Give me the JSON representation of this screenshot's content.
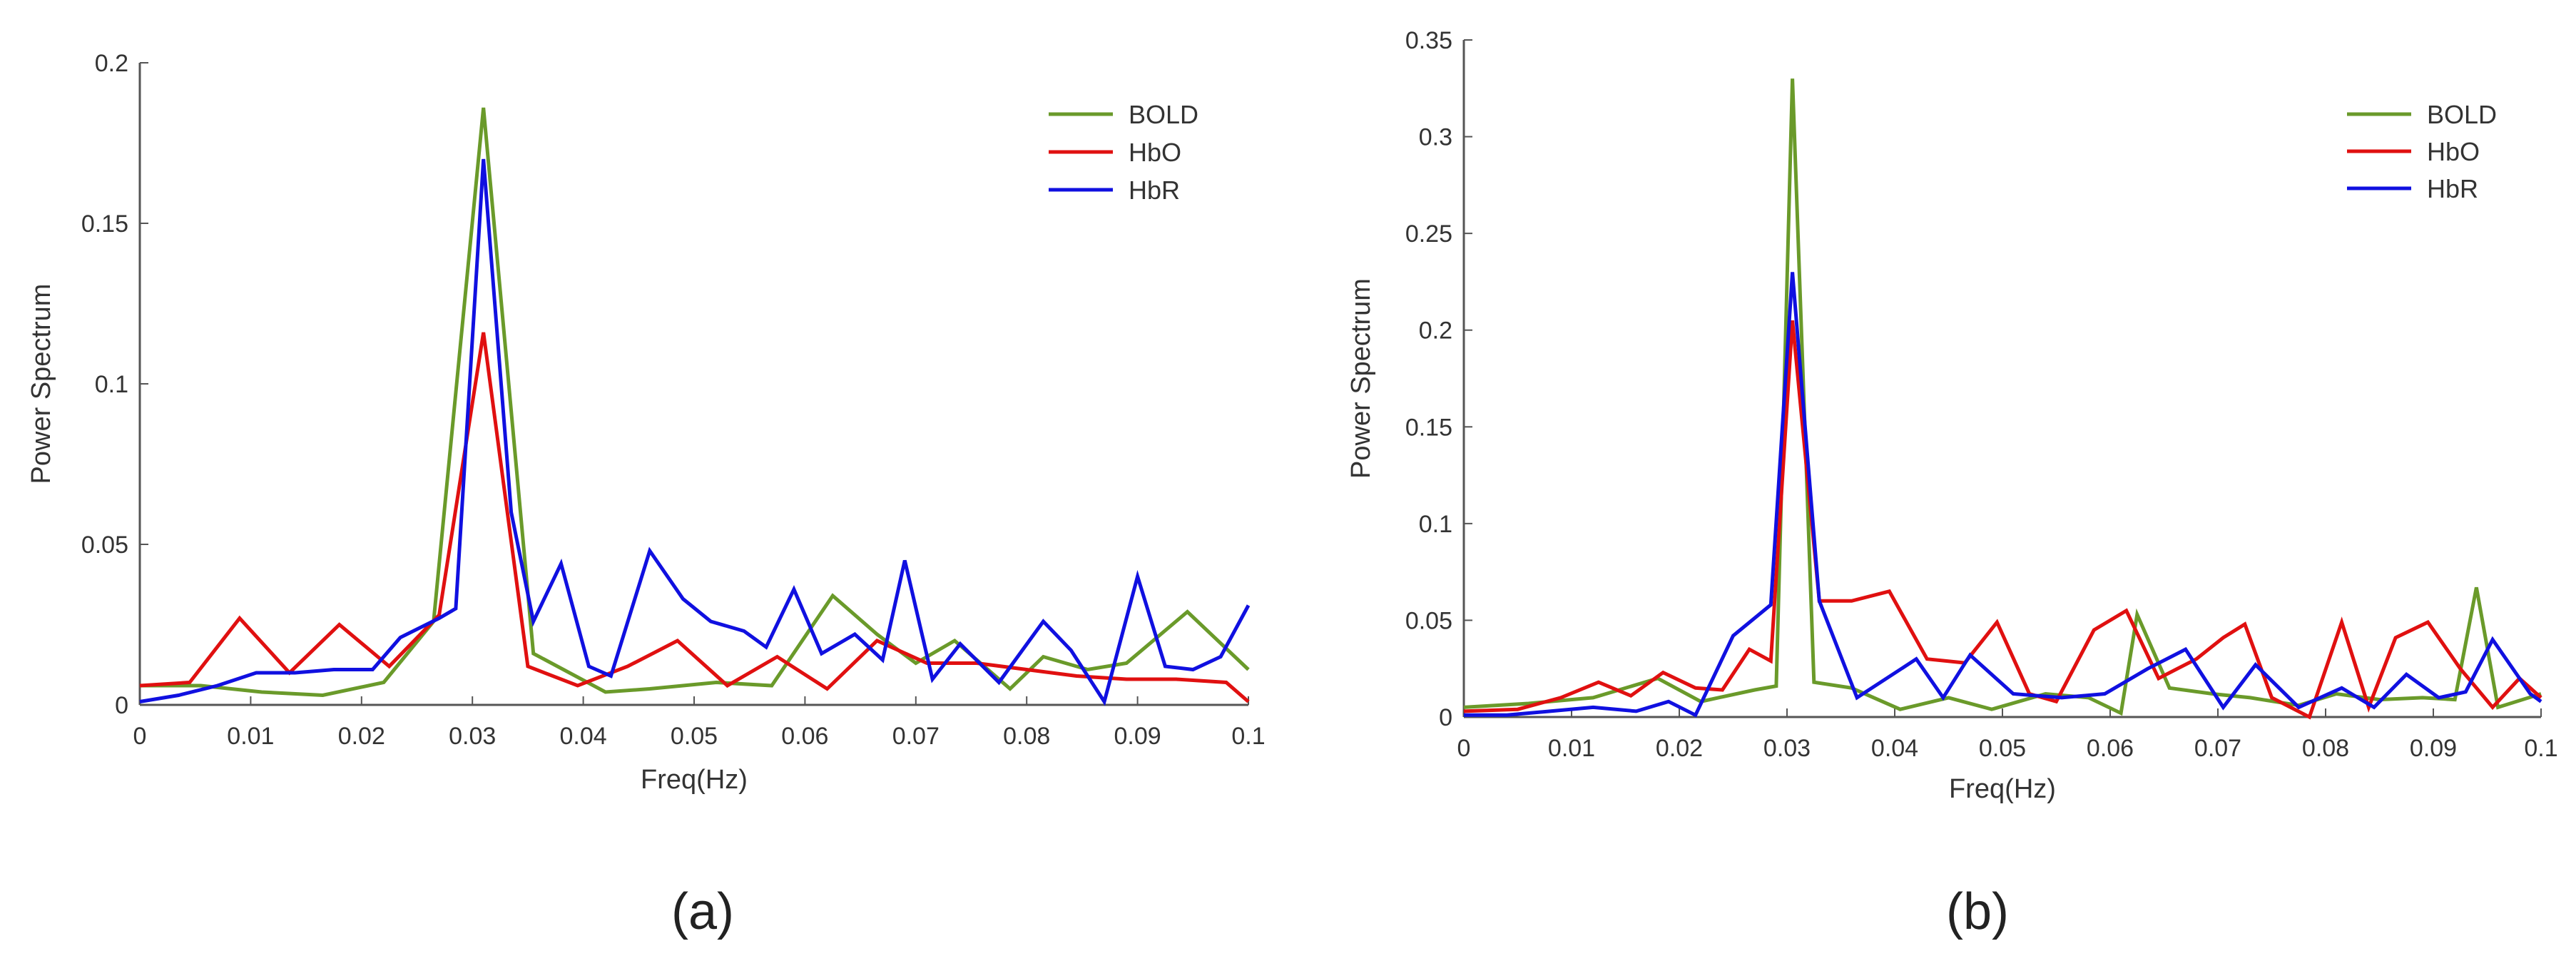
{
  "chart_data": [
    {
      "type": "line",
      "caption": "(a)",
      "xlabel": "Freq(Hz)",
      "ylabel": "Power Spectrum",
      "xlim": [
        0,
        0.1
      ],
      "ylim": [
        0,
        0.2
      ],
      "xticks": [
        0,
        0.01,
        0.02,
        0.03,
        0.04,
        0.05,
        0.06,
        0.07,
        0.08,
        0.09,
        0.1
      ],
      "xtick_labels": [
        "0",
        "0.01",
        "0.02",
        "0.03",
        "0.04",
        "0.05",
        "0.06",
        "0.07",
        "0.08",
        "0.09",
        "0.1"
      ],
      "yticks": [
        0,
        0.05,
        0.1,
        0.15,
        0.2
      ],
      "ytick_labels": [
        "0",
        "0.05",
        "0.1",
        "0.15",
        "0.2"
      ],
      "legend_position": "top-right",
      "series": [
        {
          "name": "BOLD",
          "color": "#6a9a2a",
          "x": [
            0,
            0.0055,
            0.011,
            0.0165,
            0.022,
            0.0265,
            0.031,
            0.0355,
            0.042,
            0.046,
            0.052,
            0.057,
            0.0625,
            0.0665,
            0.07,
            0.0735,
            0.0785,
            0.0815,
            0.0855,
            0.089,
            0.0945,
            0.1
          ],
          "y": [
            0.006,
            0.006,
            0.004,
            0.003,
            0.007,
            0.026,
            0.186,
            0.016,
            0.004,
            0.005,
            0.007,
            0.006,
            0.034,
            0.022,
            0.013,
            0.02,
            0.005,
            0.015,
            0.011,
            0.013,
            0.029,
            0.011
          ]
        },
        {
          "name": "HbO",
          "color": "#e01010",
          "x": [
            0,
            0.0045,
            0.009,
            0.0135,
            0.018,
            0.0225,
            0.027,
            0.031,
            0.035,
            0.0395,
            0.044,
            0.0485,
            0.053,
            0.0575,
            0.062,
            0.0665,
            0.071,
            0.0755,
            0.08,
            0.0845,
            0.089,
            0.0935,
            0.098,
            0.1
          ],
          "y": [
            0.006,
            0.007,
            0.027,
            0.01,
            0.025,
            0.012,
            0.028,
            0.116,
            0.012,
            0.006,
            0.012,
            0.02,
            0.006,
            0.015,
            0.005,
            0.02,
            0.013,
            0.013,
            0.011,
            0.009,
            0.008,
            0.008,
            0.007,
            0.001
          ]
        },
        {
          "name": "HbR",
          "color": "#1010e0",
          "x": [
            0,
            0.0035,
            0.007,
            0.0105,
            0.014,
            0.0175,
            0.021,
            0.0235,
            0.027,
            0.0285,
            0.031,
            0.0335,
            0.0355,
            0.038,
            0.0405,
            0.0425,
            0.046,
            0.049,
            0.0515,
            0.0545,
            0.0565,
            0.059,
            0.0615,
            0.0645,
            0.067,
            0.069,
            0.0715,
            0.074,
            0.0775,
            0.0815,
            0.084,
            0.087,
            0.09,
            0.0925,
            0.095,
            0.0975,
            0.1
          ],
          "y": [
            0.001,
            0.003,
            0.006,
            0.01,
            0.01,
            0.011,
            0.011,
            0.021,
            0.027,
            0.03,
            0.17,
            0.06,
            0.026,
            0.044,
            0.012,
            0.009,
            0.048,
            0.033,
            0.026,
            0.023,
            0.018,
            0.036,
            0.016,
            0.022,
            0.014,
            0.045,
            0.008,
            0.019,
            0.007,
            0.026,
            0.017,
            0.001,
            0.04,
            0.012,
            0.011,
            0.015,
            0.031
          ]
        }
      ]
    },
    {
      "type": "line",
      "caption": "(b)",
      "xlabel": "Freq(Hz)",
      "ylabel": "Power Spectrum",
      "xlim": [
        0,
        0.1
      ],
      "ylim": [
        0,
        0.35
      ],
      "xticks": [
        0,
        0.01,
        0.02,
        0.03,
        0.04,
        0.05,
        0.06,
        0.07,
        0.08,
        0.09,
        0.1
      ],
      "xtick_labels": [
        "0",
        "0.01",
        "0.02",
        "0.03",
        "0.04",
        "0.05",
        "0.06",
        "0.07",
        "0.08",
        "0.09",
        "0.1"
      ],
      "yticks": [
        0,
        0.05,
        0.1,
        0.15,
        0.2,
        0.25,
        0.3,
        0.35
      ],
      "ytick_labels": [
        "0",
        "0.05",
        "0.1",
        "0.15",
        "0.2",
        "0.25",
        "0.3",
        "0.35"
      ],
      "legend_position": "top-right",
      "series": [
        {
          "name": "BOLD",
          "color": "#6a9a2a",
          "x": [
            0,
            0.006,
            0.012,
            0.018,
            0.022,
            0.027,
            0.029,
            0.0305,
            0.0325,
            0.036,
            0.0405,
            0.045,
            0.049,
            0.054,
            0.058,
            0.061,
            0.0625,
            0.0655,
            0.0695,
            0.073,
            0.0775,
            0.081,
            0.085,
            0.089,
            0.092,
            0.094,
            0.096,
            0.1
          ],
          "y": [
            0.005,
            0.007,
            0.01,
            0.02,
            0.008,
            0.014,
            0.016,
            0.33,
            0.018,
            0.015,
            0.004,
            0.01,
            0.004,
            0.012,
            0.01,
            0.002,
            0.053,
            0.015,
            0.012,
            0.01,
            0.006,
            0.012,
            0.009,
            0.01,
            0.009,
            0.067,
            0.005,
            0.012
          ]
        },
        {
          "name": "HbO",
          "color": "#e01010",
          "x": [
            0,
            0.005,
            0.009,
            0.0125,
            0.0155,
            0.0185,
            0.0215,
            0.024,
            0.0265,
            0.0285,
            0.0305,
            0.033,
            0.036,
            0.0395,
            0.043,
            0.0465,
            0.0495,
            0.0525,
            0.055,
            0.0585,
            0.0615,
            0.0645,
            0.068,
            0.0705,
            0.0725,
            0.075,
            0.0785,
            0.0815,
            0.084,
            0.0865,
            0.0895,
            0.0925,
            0.0955,
            0.098,
            0.1
          ],
          "y": [
            0.003,
            0.004,
            0.01,
            0.018,
            0.011,
            0.023,
            0.015,
            0.014,
            0.035,
            0.029,
            0.205,
            0.06,
            0.06,
            0.065,
            0.03,
            0.028,
            0.049,
            0.012,
            0.008,
            0.045,
            0.055,
            0.02,
            0.03,
            0.041,
            0.048,
            0.01,
            0.0,
            0.049,
            0.005,
            0.041,
            0.049,
            0.025,
            0.005,
            0.02,
            0.01
          ]
        },
        {
          "name": "HbR",
          "color": "#1010e0",
          "x": [
            0,
            0.004,
            0.008,
            0.012,
            0.016,
            0.019,
            0.0215,
            0.025,
            0.0285,
            0.0305,
            0.033,
            0.0365,
            0.042,
            0.0445,
            0.047,
            0.051,
            0.0555,
            0.0595,
            0.0635,
            0.067,
            0.0705,
            0.0735,
            0.0775,
            0.0815,
            0.0845,
            0.0875,
            0.0905,
            0.093,
            0.0955,
            0.099,
            0.1
          ],
          "y": [
            0.001,
            0.001,
            0.003,
            0.005,
            0.003,
            0.008,
            0.001,
            0.042,
            0.058,
            0.23,
            0.06,
            0.01,
            0.03,
            0.01,
            0.032,
            0.012,
            0.01,
            0.012,
            0.025,
            0.035,
            0.005,
            0.027,
            0.005,
            0.015,
            0.005,
            0.022,
            0.01,
            0.013,
            0.04,
            0.012,
            0.008
          ]
        }
      ]
    }
  ]
}
